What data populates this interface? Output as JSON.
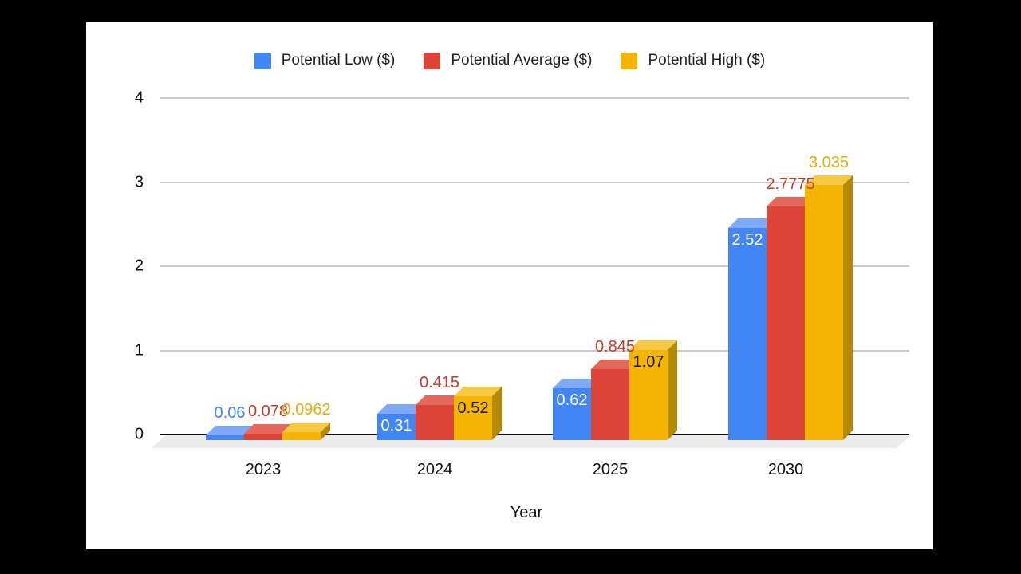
{
  "frame": {
    "background": "#000000",
    "card_background": "#ffffff"
  },
  "legend": {
    "items": [
      {
        "label": "Potential Low ($)",
        "color": "#4285f4"
      },
      {
        "label": "Potential Average ($)",
        "color": "#db4437"
      },
      {
        "label": "Potential High ($)",
        "color": "#f4b400"
      }
    ]
  },
  "chart_data": {
    "type": "bar",
    "subtype": "3d-grouped-columns",
    "title": "",
    "xlabel": "Year",
    "ylabel": "",
    "categories": [
      "2023",
      "2024",
      "2025",
      "2030"
    ],
    "y_ticks": [
      0,
      1,
      2,
      3,
      4
    ],
    "ylim": [
      0,
      4
    ],
    "grid": true,
    "legend_position": "top",
    "series": [
      {
        "name": "Potential Low ($)",
        "color": "#4285f4",
        "top_color": "#80a9f7",
        "side_color": "#2a56b9",
        "label_color": "#4285f4",
        "inside_text_color": "#ffffff",
        "values": [
          0.06,
          0.31,
          0.62,
          2.52
        ],
        "labels": [
          "0.06",
          "0.31",
          "0.62",
          "2.52"
        ],
        "label_modes": [
          "above",
          "inside",
          "inside",
          "inside"
        ]
      },
      {
        "name": "Potential Average ($)",
        "color": "#db4437",
        "top_color": "#e4685c",
        "side_color": "#a93226",
        "label_color": "#be3d2d",
        "inside_text_color": "#ffffff",
        "values": [
          0.078,
          0.415,
          0.845,
          2.7775
        ],
        "labels": [
          "0.078",
          "0.415",
          "0.845",
          "2.7775"
        ],
        "label_modes": [
          "above",
          "above",
          "above",
          "above"
        ]
      },
      {
        "name": "Potential High ($)",
        "color": "#f4b400",
        "top_color": "#f7c843",
        "side_color": "#b58900",
        "label_color": "#dfae12",
        "inside_text_color": "#1a1a1a",
        "values": [
          0.0962,
          0.52,
          1.07,
          3.035
        ],
        "labels": [
          "0.0962",
          "0.52",
          "1.07",
          "3.035"
        ],
        "label_modes": [
          "above",
          "inside",
          "inside",
          "above"
        ]
      }
    ]
  }
}
